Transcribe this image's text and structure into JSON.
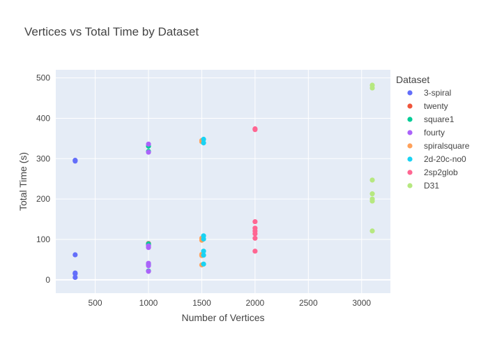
{
  "chart_data": {
    "type": "scatter",
    "title": "Vertices vs Total Time by Dataset",
    "xlabel": "Number of Vertices",
    "ylabel": "Total Time (s)",
    "xlim": [
      130,
      3270
    ],
    "ylim": [
      -33,
      520
    ],
    "x_ticks": [
      500,
      1000,
      1500,
      2000,
      2500,
      3000
    ],
    "y_ticks": [
      0,
      100,
      200,
      300,
      400,
      500
    ],
    "grid": true,
    "plot_background": "#e5ecf6",
    "legend": {
      "title": "Dataset",
      "position": "right"
    },
    "series": [
      {
        "name": "3-spiral",
        "color": "#636efa",
        "points": [
          [
            312,
            296
          ],
          [
            312,
            294
          ],
          [
            312,
            62
          ],
          [
            312,
            17
          ],
          [
            312,
            15
          ],
          [
            312,
            6
          ]
        ]
      },
      {
        "name": "twenty",
        "color": "#ef553b",
        "points": [
          [
            1000,
            90
          ],
          [
            1000,
            87
          ]
        ]
      },
      {
        "name": "square1",
        "color": "#00cc96",
        "points": [
          [
            1000,
            331
          ],
          [
            1000,
            318
          ],
          [
            1000,
            89
          ],
          [
            1000,
            86
          ],
          [
            1000,
            38
          ],
          [
            1000,
            22
          ]
        ]
      },
      {
        "name": "fourty",
        "color": "#ab63fa",
        "points": [
          [
            1000,
            336
          ],
          [
            1000,
            316
          ],
          [
            1000,
            84
          ],
          [
            1000,
            80
          ],
          [
            1000,
            41
          ],
          [
            1000,
            35
          ],
          [
            1000,
            21
          ]
        ]
      },
      {
        "name": "spiralsquare",
        "color": "#ffa15a",
        "points": [
          [
            1500,
            345
          ],
          [
            1500,
            342
          ],
          [
            1500,
            103
          ],
          [
            1500,
            98
          ],
          [
            1500,
            63
          ],
          [
            1500,
            60
          ],
          [
            1500,
            37
          ]
        ]
      },
      {
        "name": "2d-20c-no0",
        "color": "#19d3f3",
        "points": [
          [
            1517,
            348
          ],
          [
            1517,
            339
          ],
          [
            1517,
            109
          ],
          [
            1517,
            101
          ],
          [
            1517,
            71
          ],
          [
            1517,
            61
          ],
          [
            1517,
            39
          ]
        ]
      },
      {
        "name": "2sp2glob",
        "color": "#ff6692",
        "points": [
          [
            2000,
            374
          ],
          [
            2000,
            372
          ],
          [
            2000,
            144
          ],
          [
            2000,
            128
          ],
          [
            2000,
            121
          ],
          [
            2000,
            114
          ],
          [
            2000,
            103
          ],
          [
            2000,
            71
          ]
        ]
      },
      {
        "name": "D31",
        "color": "#b6e880",
        "points": [
          [
            3100,
            482
          ],
          [
            3100,
            475
          ],
          [
            3100,
            247
          ],
          [
            3100,
            213
          ],
          [
            3100,
            200
          ],
          [
            3100,
            195
          ],
          [
            3100,
            121
          ]
        ]
      }
    ]
  }
}
